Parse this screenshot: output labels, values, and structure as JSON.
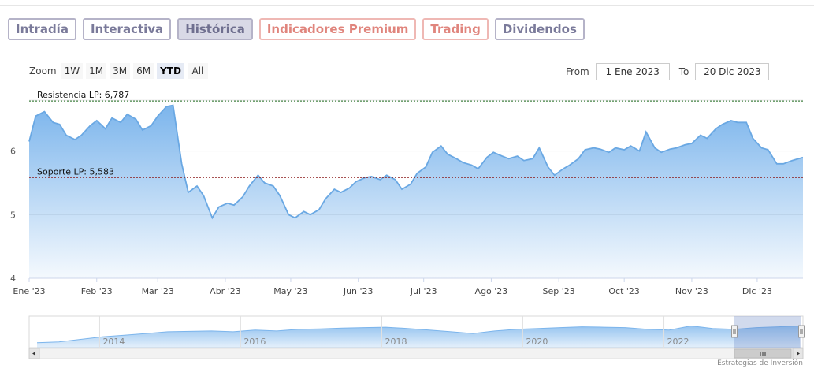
{
  "tabs": [
    {
      "label": "Intradía",
      "kind": "normal"
    },
    {
      "label": "Interactiva",
      "kind": "normal"
    },
    {
      "label": "Histórica",
      "kind": "active"
    },
    {
      "label": "Indicadores Premium",
      "kind": "premium"
    },
    {
      "label": "Trading",
      "kind": "trading"
    },
    {
      "label": "Dividendos",
      "kind": "normal"
    }
  ],
  "zoom": {
    "label": "Zoom",
    "buttons": [
      "1W",
      "1M",
      "3M",
      "6M",
      "YTD",
      "All"
    ],
    "selected": "YTD"
  },
  "range": {
    "from_label": "From",
    "from_value": "1 Ene 2023",
    "to_label": "To",
    "to_value": "20 Dic 2023"
  },
  "credits": "Estrategias de Inversión",
  "colors": {
    "area": "#7cb5ec",
    "line": "#6aa8e3",
    "resistance": "#1e6b1e",
    "support": "#8b1a1a"
  },
  "chart_data": {
    "type": "area",
    "x_start": "2023-01-01",
    "x_end": "2023-12-22",
    "ylim": [
      4,
      6.95
    ],
    "y_ticks": [
      4,
      5,
      6
    ],
    "x_ticks": [
      {
        "label": "Ene '23",
        "date": "2023-01-01"
      },
      {
        "label": "Feb '23",
        "date": "2023-02-01"
      },
      {
        "label": "Mar '23",
        "date": "2023-03-01"
      },
      {
        "label": "Abr '23",
        "date": "2023-04-01"
      },
      {
        "label": "May '23",
        "date": "2023-05-01"
      },
      {
        "label": "Jun '23",
        "date": "2023-06-01"
      },
      {
        "label": "Jul '23",
        "date": "2023-07-01"
      },
      {
        "label": "Ago '23",
        "date": "2023-08-01"
      },
      {
        "label": "Sep '23",
        "date": "2023-09-01"
      },
      {
        "label": "Oct '23",
        "date": "2023-10-01"
      },
      {
        "label": "Nov '23",
        "date": "2023-11-01"
      },
      {
        "label": "Dic '23",
        "date": "2023-12-01"
      }
    ],
    "reference_lines": [
      {
        "label": "Resistencia LP: 6,787",
        "value": 6.787,
        "style": "dotted"
      },
      {
        "label": "Soporte LP: 5,583",
        "value": 5.583,
        "style": "dotted"
      }
    ],
    "series": [
      {
        "x": [
          "2023-01-01",
          "2023-01-04",
          "2023-01-08",
          "2023-01-12",
          "2023-01-15",
          "2023-01-18",
          "2023-01-22",
          "2023-01-25",
          "2023-01-29",
          "2023-02-01",
          "2023-02-05",
          "2023-02-08",
          "2023-02-12",
          "2023-02-15",
          "2023-02-19",
          "2023-02-22",
          "2023-02-26",
          "2023-03-01",
          "2023-03-05",
          "2023-03-08",
          "2023-03-12",
          "2023-03-15",
          "2023-03-19",
          "2023-03-22",
          "2023-03-26",
          "2023-03-29",
          "2023-04-02",
          "2023-04-05",
          "2023-04-09",
          "2023-04-12",
          "2023-04-16",
          "2023-04-19",
          "2023-04-23",
          "2023-04-26",
          "2023-04-30",
          "2023-05-03",
          "2023-05-07",
          "2023-05-10",
          "2023-05-14",
          "2023-05-17",
          "2023-05-21",
          "2023-05-24",
          "2023-05-28",
          "2023-05-31",
          "2023-06-04",
          "2023-06-07",
          "2023-06-11",
          "2023-06-14",
          "2023-06-18",
          "2023-06-21",
          "2023-06-25",
          "2023-06-28",
          "2023-07-02",
          "2023-07-05",
          "2023-07-09",
          "2023-07-12",
          "2023-07-16",
          "2023-07-19",
          "2023-07-23",
          "2023-07-26",
          "2023-07-30",
          "2023-08-02",
          "2023-08-06",
          "2023-08-09",
          "2023-08-13",
          "2023-08-16",
          "2023-08-20",
          "2023-08-23",
          "2023-08-27",
          "2023-08-30",
          "2023-09-03",
          "2023-09-06",
          "2023-09-10",
          "2023-09-13",
          "2023-09-17",
          "2023-09-20",
          "2023-09-24",
          "2023-09-27",
          "2023-10-01",
          "2023-10-04",
          "2023-10-08",
          "2023-10-11",
          "2023-10-15",
          "2023-10-18",
          "2023-10-22",
          "2023-10-25",
          "2023-10-29",
          "2023-11-01",
          "2023-11-05",
          "2023-11-08",
          "2023-11-12",
          "2023-11-15",
          "2023-11-19",
          "2023-11-22",
          "2023-11-26",
          "2023-11-29",
          "2023-12-03",
          "2023-12-06",
          "2023-12-10",
          "2023-12-13",
          "2023-12-17",
          "2023-12-20",
          "2023-12-22"
        ],
        "y": [
          6.15,
          6.55,
          6.62,
          6.45,
          6.42,
          6.25,
          6.18,
          6.25,
          6.4,
          6.48,
          6.35,
          6.52,
          6.45,
          6.58,
          6.5,
          6.33,
          6.4,
          6.55,
          6.7,
          6.72,
          5.8,
          5.35,
          5.45,
          5.3,
          4.95,
          5.12,
          5.18,
          5.15,
          5.28,
          5.45,
          5.62,
          5.5,
          5.45,
          5.3,
          5.0,
          4.95,
          5.05,
          5.0,
          5.08,
          5.25,
          5.4,
          5.35,
          5.42,
          5.52,
          5.58,
          5.6,
          5.55,
          5.62,
          5.55,
          5.4,
          5.48,
          5.65,
          5.75,
          5.98,
          6.08,
          5.95,
          5.88,
          5.82,
          5.78,
          5.72,
          5.9,
          5.98,
          5.92,
          5.88,
          5.92,
          5.85,
          5.88,
          6.05,
          5.75,
          5.62,
          5.72,
          5.78,
          5.88,
          6.02,
          6.05,
          6.03,
          5.98,
          6.05,
          6.02,
          6.08,
          6.0,
          6.3,
          6.05,
          5.98,
          6.03,
          6.05,
          6.1,
          6.12,
          6.25,
          6.2,
          6.35,
          6.42,
          6.48,
          6.45,
          6.45,
          6.2,
          6.05,
          6.02,
          5.8,
          5.8,
          5.85,
          5.88,
          5.9
        ]
      }
    ],
    "navigator": {
      "x_ticks": [
        "2014",
        "2016",
        "2018",
        "2020",
        "2022"
      ],
      "range": [
        "2013-01-01",
        "2023-12-22"
      ],
      "y": [
        4.2,
        4.3,
        4.6,
        4.9,
        5.1,
        5.3,
        5.5,
        5.55,
        5.6,
        5.5,
        5.7,
        5.6,
        5.8,
        5.85,
        5.95,
        6.0,
        6.05,
        5.9,
        5.7,
        5.5,
        5.3,
        5.6,
        5.8,
        5.9,
        6.0,
        6.1,
        6.05,
        6.0,
        5.8,
        5.7,
        6.2,
        5.9,
        5.8,
        6.0,
        6.1,
        6.2
      ],
      "selected_range": [
        "2023-01-01",
        "2023-12-22"
      ]
    }
  }
}
